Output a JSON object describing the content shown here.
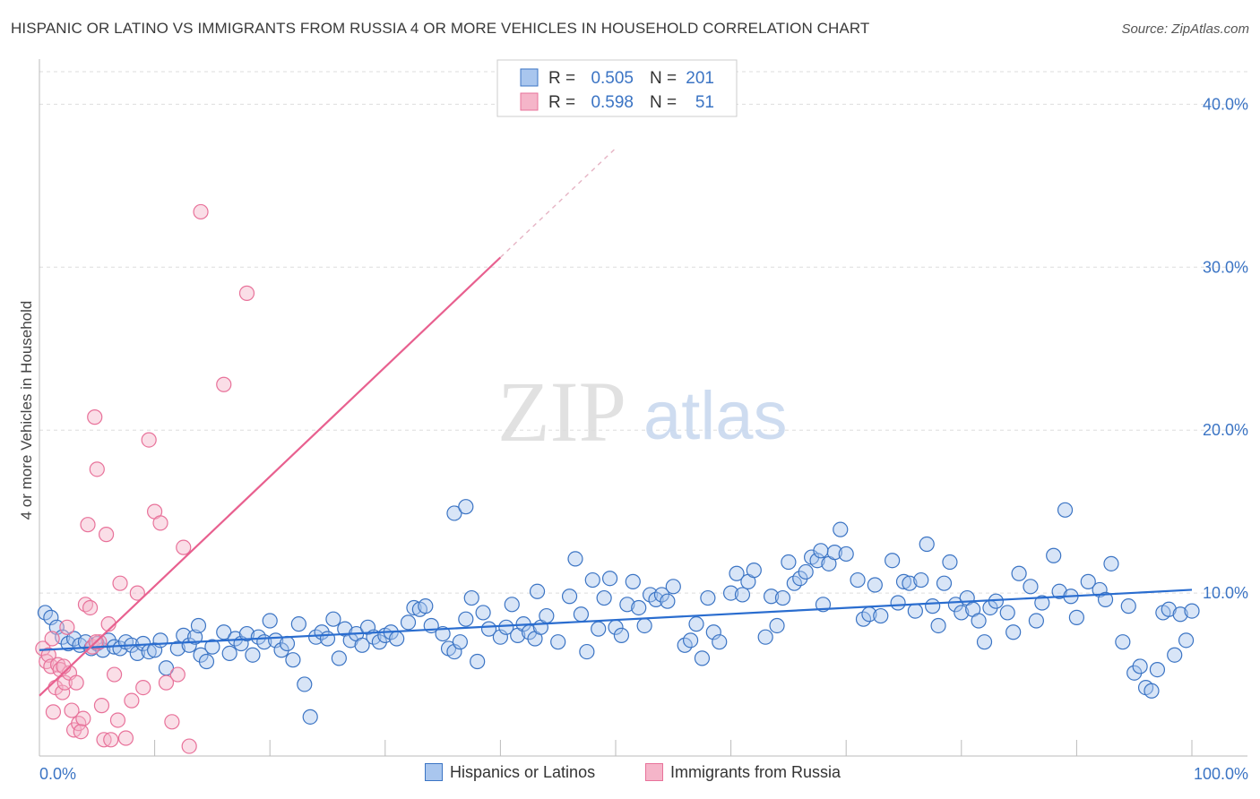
{
  "title": "HISPANIC OR LATINO VS IMMIGRANTS FROM RUSSIA 4 OR MORE VEHICLES IN HOUSEHOLD CORRELATION CHART",
  "source": "Source: ZipAtlas.com",
  "watermark": {
    "zip": "ZIP",
    "atlas": "atlas"
  },
  "colors": {
    "blue": "#3b74c4",
    "blue_fill": "#a9c6ee",
    "blue_line": "#2a6dcf",
    "pink": "#e8729a",
    "pink_fill": "#f5b5c9",
    "pink_line": "#e8608f",
    "grid": "#dddddd"
  },
  "stats_legend": [
    {
      "r_label": "R =",
      "r_value": "0.505",
      "n_label": "N =",
      "n_value": "201"
    },
    {
      "r_label": "R =",
      "r_value": "0.598",
      "n_label": "N =",
      "n_value": "51"
    }
  ],
  "chart_data": {
    "type": "scatter",
    "title": "",
    "xlabel": "",
    "ylabel": "4 or more Vehicles in Household",
    "xlim": [
      0,
      100
    ],
    "ylim": [
      0,
      42
    ],
    "x_tick_labels": [
      "0.0%",
      "100.0%"
    ],
    "y_ticks": [
      10,
      20,
      30,
      40
    ],
    "y_tick_labels": [
      "10.0%",
      "20.0%",
      "30.0%",
      "40.0%"
    ],
    "grid": true,
    "series": [
      {
        "name": "Hispanics or Latinos",
        "trend": {
          "x0": 0,
          "y0": 6.5,
          "x1": 100,
          "y1": 10.2
        },
        "points": [
          [
            0.5,
            8.8
          ],
          [
            1,
            8.5
          ],
          [
            1.5,
            7.9
          ],
          [
            2,
            7.3
          ],
          [
            2.5,
            6.9
          ],
          [
            3,
            7.2
          ],
          [
            3.5,
            6.8
          ],
          [
            4,
            7.0
          ],
          [
            4.5,
            6.6
          ],
          [
            5,
            6.9
          ],
          [
            5.5,
            6.5
          ],
          [
            6,
            7.1
          ],
          [
            6.5,
            6.7
          ],
          [
            7,
            6.6
          ],
          [
            7.5,
            7.0
          ],
          [
            8,
            6.8
          ],
          [
            8.5,
            6.3
          ],
          [
            9,
            6.9
          ],
          [
            9.5,
            6.4
          ],
          [
            10,
            6.5
          ],
          [
            10.5,
            7.1
          ],
          [
            11,
            5.4
          ],
          [
            12,
            6.6
          ],
          [
            12.5,
            7.4
          ],
          [
            13,
            6.8
          ],
          [
            13.5,
            7.3
          ],
          [
            14,
            6.2
          ],
          [
            14.5,
            5.8
          ],
          [
            15,
            6.7
          ],
          [
            16,
            7.6
          ],
          [
            16.5,
            6.3
          ],
          [
            17,
            7.2
          ],
          [
            17.5,
            6.9
          ],
          [
            18,
            7.5
          ],
          [
            18.5,
            6.2
          ],
          [
            19,
            7.3
          ],
          [
            19.5,
            7.0
          ],
          [
            20,
            8.3
          ],
          [
            20.5,
            7.1
          ],
          [
            21,
            6.5
          ],
          [
            21.5,
            6.9
          ],
          [
            22,
            5.9
          ],
          [
            22.5,
            8.1
          ],
          [
            23,
            4.4
          ],
          [
            23.5,
            2.4
          ],
          [
            24,
            7.3
          ],
          [
            24.5,
            7.6
          ],
          [
            25,
            7.2
          ],
          [
            25.5,
            8.4
          ],
          [
            26,
            6.0
          ],
          [
            26.5,
            7.8
          ],
          [
            27,
            7.1
          ],
          [
            27.5,
            7.5
          ],
          [
            28,
            6.8
          ],
          [
            28.5,
            7.9
          ],
          [
            29,
            7.3
          ],
          [
            29.5,
            7.0
          ],
          [
            30,
            7.4
          ],
          [
            30.5,
            7.6
          ],
          [
            31,
            7.2
          ],
          [
            32,
            8.2
          ],
          [
            32.5,
            9.1
          ],
          [
            33,
            9.0
          ],
          [
            33.5,
            9.2
          ],
          [
            34,
            8.0
          ],
          [
            35,
            7.5
          ],
          [
            35.5,
            6.6
          ],
          [
            36,
            6.4
          ],
          [
            36.5,
            7.0
          ],
          [
            37,
            8.4
          ],
          [
            37.5,
            9.7
          ],
          [
            38,
            5.8
          ],
          [
            38.5,
            8.8
          ],
          [
            39,
            7.8
          ],
          [
            40,
            7.3
          ],
          [
            40.5,
            7.9
          ],
          [
            41,
            9.3
          ],
          [
            41.5,
            7.4
          ],
          [
            42,
            8.1
          ],
          [
            42.5,
            7.6
          ],
          [
            43,
            7.2
          ],
          [
            43.5,
            7.9
          ],
          [
            44,
            8.6
          ],
          [
            45,
            7.0
          ],
          [
            46,
            9.8
          ],
          [
            46.5,
            12.1
          ],
          [
            47,
            8.7
          ],
          [
            47.5,
            6.4
          ],
          [
            48,
            10.8
          ],
          [
            48.5,
            7.8
          ],
          [
            49,
            9.7
          ],
          [
            49.5,
            10.9
          ],
          [
            50,
            7.9
          ],
          [
            50.5,
            7.4
          ],
          [
            51,
            9.3
          ],
          [
            51.5,
            10.7
          ],
          [
            52,
            9.1
          ],
          [
            52.5,
            8.0
          ],
          [
            53,
            9.9
          ],
          [
            53.5,
            9.6
          ],
          [
            54,
            9.9
          ],
          [
            54.5,
            9.5
          ],
          [
            55,
            10.4
          ],
          [
            56,
            6.8
          ],
          [
            56.5,
            7.1
          ],
          [
            57,
            8.1
          ],
          [
            57.5,
            6.0
          ],
          [
            58,
            9.7
          ],
          [
            58.5,
            7.6
          ],
          [
            59,
            7.0
          ],
          [
            60,
            10.0
          ],
          [
            60.5,
            11.2
          ],
          [
            61,
            9.9
          ],
          [
            61.5,
            10.7
          ],
          [
            62,
            11.4
          ],
          [
            63,
            7.3
          ],
          [
            63.5,
            9.8
          ],
          [
            64,
            8.0
          ],
          [
            64.5,
            9.7
          ],
          [
            65,
            11.9
          ],
          [
            65.5,
            10.6
          ],
          [
            66,
            10.9
          ],
          [
            66.5,
            11.3
          ],
          [
            67,
            12.2
          ],
          [
            67.5,
            12.0
          ],
          [
            68,
            9.3
          ],
          [
            68.5,
            11.8
          ],
          [
            69,
            12.5
          ],
          [
            69.5,
            13.9
          ],
          [
            70,
            12.4
          ],
          [
            71,
            10.8
          ],
          [
            71.5,
            8.4
          ],
          [
            72,
            8.7
          ],
          [
            72.5,
            10.5
          ],
          [
            73,
            8.6
          ],
          [
            74,
            12.0
          ],
          [
            74.5,
            9.4
          ],
          [
            75,
            10.7
          ],
          [
            75.5,
            10.6
          ],
          [
            76,
            8.9
          ],
          [
            76.5,
            10.8
          ],
          [
            77,
            13.0
          ],
          [
            77.5,
            9.2
          ],
          [
            78,
            8.0
          ],
          [
            78.5,
            10.6
          ],
          [
            79,
            11.9
          ],
          [
            79.5,
            9.3
          ],
          [
            80,
            8.8
          ],
          [
            80.5,
            9.7
          ],
          [
            81,
            9.0
          ],
          [
            81.5,
            8.3
          ],
          [
            82,
            7.0
          ],
          [
            82.5,
            9.1
          ],
          [
            83,
            9.5
          ],
          [
            84,
            8.8
          ],
          [
            84.5,
            7.6
          ],
          [
            85,
            11.2
          ],
          [
            86,
            10.4
          ],
          [
            86.5,
            8.3
          ],
          [
            87,
            9.4
          ],
          [
            88,
            12.3
          ],
          [
            88.5,
            10.1
          ],
          [
            89,
            15.1
          ],
          [
            89.5,
            9.8
          ],
          [
            90,
            8.5
          ],
          [
            91,
            10.7
          ],
          [
            92,
            10.2
          ],
          [
            92.5,
            9.6
          ],
          [
            93,
            11.8
          ],
          [
            94,
            7.0
          ],
          [
            94.5,
            9.2
          ],
          [
            95,
            5.1
          ],
          [
            95.5,
            5.5
          ],
          [
            96,
            4.2
          ],
          [
            96.5,
            4.0
          ],
          [
            97,
            5.3
          ],
          [
            97.5,
            8.8
          ],
          [
            98,
            9.0
          ],
          [
            98.5,
            6.2
          ],
          [
            99,
            8.7
          ],
          [
            99.5,
            7.1
          ],
          [
            100,
            8.9
          ],
          [
            36,
            14.9
          ],
          [
            37,
            15.3
          ],
          [
            13.8,
            8.0
          ],
          [
            43.2,
            10.1
          ],
          [
            67.8,
            12.6
          ]
        ]
      },
      {
        "name": "Immigrants from Russia",
        "trend": {
          "x0": 0,
          "y0": 3.7,
          "x1": 40,
          "y1": 30.6,
          "dash_to_x": 50,
          "dash_to_y": 37.3
        },
        "points": [
          [
            0.3,
            6.6
          ],
          [
            0.6,
            5.8
          ],
          [
            0.8,
            6.2
          ],
          [
            1,
            5.5
          ],
          [
            1.2,
            2.7
          ],
          [
            1.4,
            4.2
          ],
          [
            1.6,
            5.6
          ],
          [
            1.8,
            5.3
          ],
          [
            2,
            3.9
          ],
          [
            2.2,
            4.5
          ],
          [
            2.4,
            7.9
          ],
          [
            2.6,
            5.1
          ],
          [
            2.8,
            2.8
          ],
          [
            3,
            1.6
          ],
          [
            3.2,
            4.5
          ],
          [
            3.4,
            2.0
          ],
          [
            3.6,
            1.5
          ],
          [
            3.8,
            2.3
          ],
          [
            4,
            9.3
          ],
          [
            4.2,
            14.2
          ],
          [
            4.4,
            9.1
          ],
          [
            4.6,
            6.7
          ],
          [
            4.8,
            20.8
          ],
          [
            5,
            17.6
          ],
          [
            5.2,
            7.0
          ],
          [
            5.4,
            3.1
          ],
          [
            5.6,
            1.0
          ],
          [
            5.8,
            13.6
          ],
          [
            6,
            8.1
          ],
          [
            6.2,
            1.0
          ],
          [
            6.5,
            5.0
          ],
          [
            6.8,
            2.2
          ],
          [
            7,
            10.6
          ],
          [
            7.5,
            1.1
          ],
          [
            8,
            3.4
          ],
          [
            8.5,
            10.0
          ],
          [
            9,
            4.2
          ],
          [
            9.5,
            19.4
          ],
          [
            10,
            15.0
          ],
          [
            10.5,
            14.3
          ],
          [
            11,
            4.5
          ],
          [
            11.5,
            2.1
          ],
          [
            12,
            5.0
          ],
          [
            12.5,
            12.8
          ],
          [
            13,
            0.6
          ],
          [
            14,
            33.4
          ],
          [
            16,
            22.8
          ],
          [
            18,
            28.4
          ],
          [
            2.1,
            5.5
          ],
          [
            1.1,
            7.2
          ],
          [
            4.9,
            7.0
          ]
        ]
      }
    ]
  },
  "legend": [
    {
      "label": "Hispanics or Latinos"
    },
    {
      "label": "Immigrants from Russia"
    }
  ]
}
